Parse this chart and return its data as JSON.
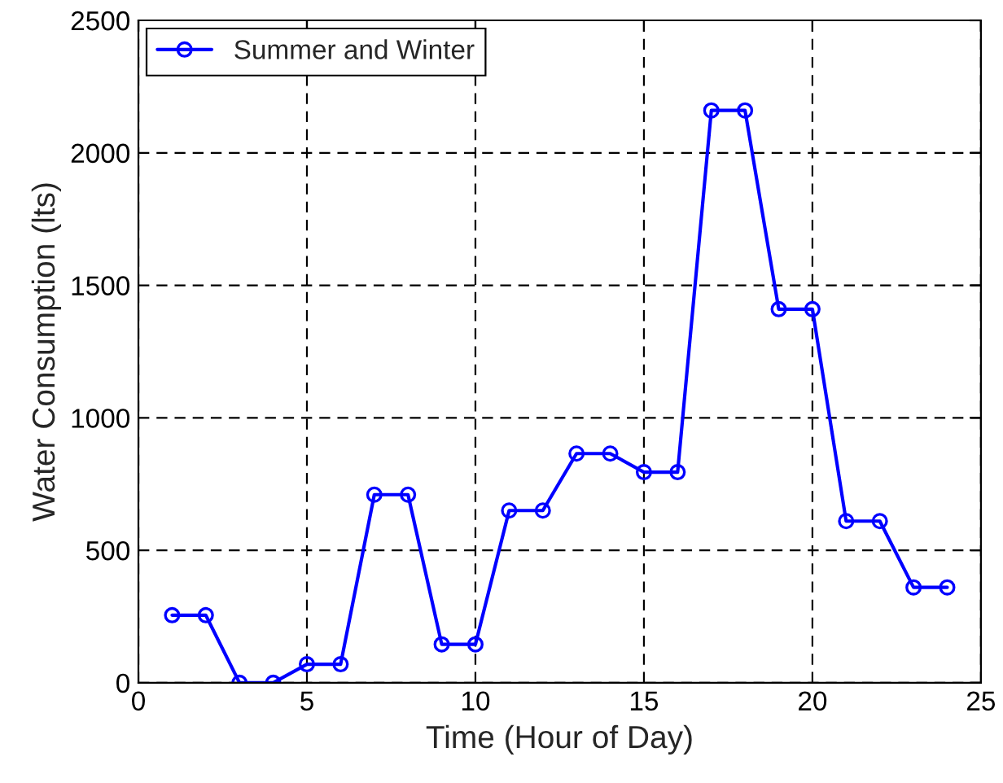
{
  "chart_data": {
    "type": "line",
    "xlabel": "Time (Hour of Day)",
    "ylabel": "Water Consumption (lts)",
    "x": [
      1,
      2,
      3,
      4,
      5,
      6,
      7,
      8,
      9,
      10,
      11,
      12,
      13,
      14,
      15,
      16,
      17,
      18,
      19,
      20,
      21,
      22,
      23,
      24
    ],
    "series": [
      {
        "name": "Summer and Winter",
        "color": "#0000ff",
        "values": [
          255,
          255,
          0,
          0,
          70,
          70,
          710,
          710,
          145,
          145,
          650,
          650,
          865,
          865,
          795,
          795,
          2160,
          2160,
          1410,
          1410,
          610,
          610,
          360,
          360
        ]
      }
    ],
    "xlim": [
      0,
      25
    ],
    "xticks": [
      0,
      5,
      10,
      15,
      20,
      25
    ],
    "ylim": [
      0,
      2500
    ],
    "yticks": [
      0,
      500,
      1000,
      1500,
      2000,
      2500
    ],
    "grid": true,
    "legend": "top left",
    "marker": "circle",
    "line_style": "solid"
  }
}
